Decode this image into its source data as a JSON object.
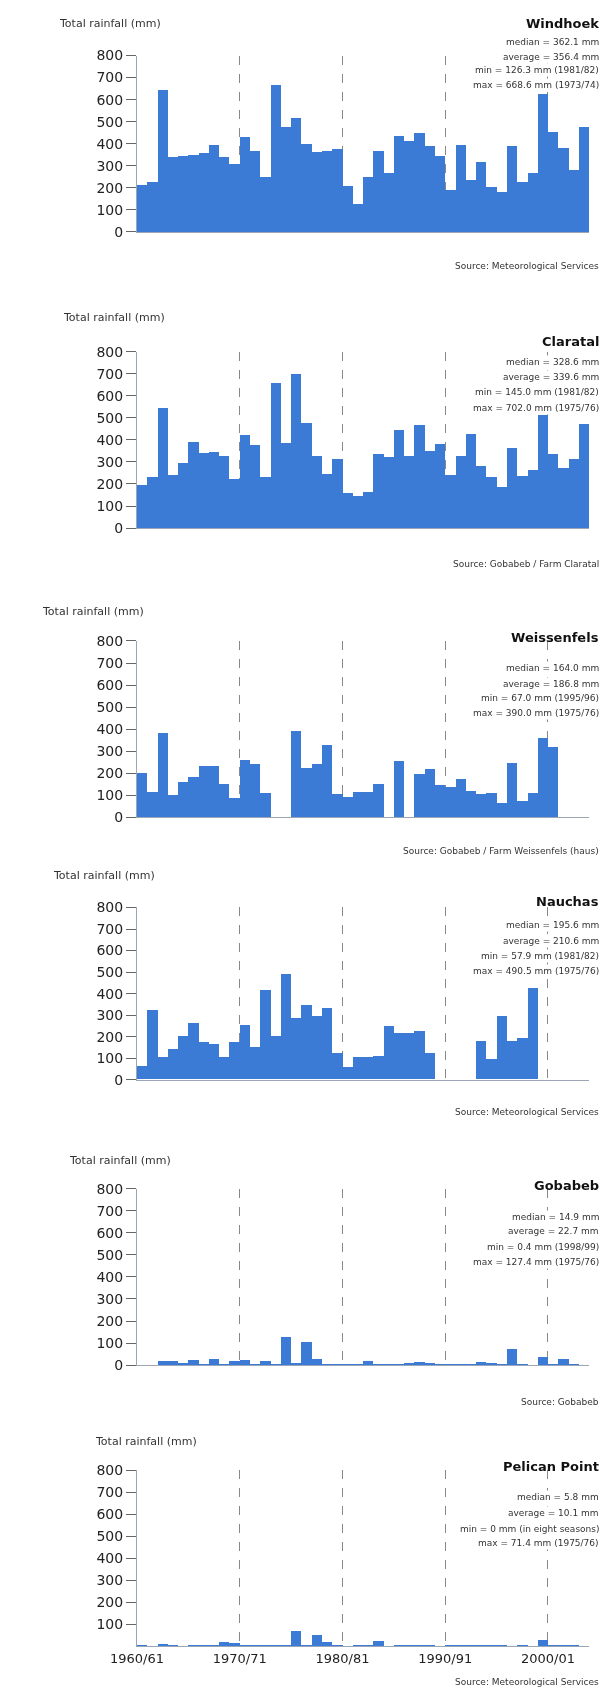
{
  "chart_data": [
    {
      "type": "bar",
      "title": "Windhoek",
      "ylabel": "Total rainfall (mm)",
      "categories": [
        "1960/61",
        null,
        null,
        null,
        null,
        null,
        null,
        null,
        null,
        null,
        "1970/71",
        null,
        null,
        null,
        null,
        null,
        null,
        null,
        null,
        null,
        "1980/81",
        null,
        null,
        null,
        null,
        null,
        null,
        null,
        null,
        null,
        "1990/91",
        null,
        null,
        null,
        null,
        null,
        null,
        null,
        null,
        null,
        "2000/01",
        null,
        null,
        null
      ],
      "values": [
        215,
        229,
        645,
        341,
        345,
        350,
        358,
        398,
        341,
        310,
        433,
        369,
        249,
        668.6,
        480,
        518,
        402,
        365,
        367,
        379,
        210,
        126.3,
        253,
        371,
        267,
        438,
        416,
        450,
        390,
        346,
        194,
        397,
        239,
        319,
        206,
        185,
        390,
        229,
        268,
        627,
        454,
        381,
        282,
        476
      ],
      "color": "#3b7bd6",
      "ylim": [
        0,
        800
      ],
      "yticks": [
        0,
        100,
        200,
        300,
        400,
        500,
        600,
        700,
        800
      ],
      "grid": "x",
      "tick_labels": "y",
      "annotations": [
        "median = 362.1 mm",
        "average = 356.4 mm",
        "min = 126.3 mm (1981/82)",
        "max = 668.6 mm (1973/74)",
        "Source: Meteorological Services"
      ]
    },
    {
      "type": "bar",
      "title": "Claratal",
      "ylabel": "Total rainfall (mm)",
      "categories": [
        "1960/61",
        null,
        null,
        null,
        null,
        null,
        null,
        null,
        null,
        null,
        "1970/71",
        null,
        null,
        null,
        null,
        null,
        null,
        null,
        null,
        null,
        "1980/81",
        null,
        null,
        null,
        null,
        null,
        null,
        null,
        null,
        null,
        "1990/91",
        null,
        null,
        null,
        null,
        null,
        null,
        null,
        null,
        null,
        "2000/01",
        null,
        null,
        null
      ],
      "values": [
        195,
        235,
        546,
        240,
        295,
        390,
        342,
        345,
        330,
        225,
        423,
        380,
        235,
        658,
        389,
        702.0,
        477,
        326,
        245,
        316,
        161,
        145.0,
        166,
        335,
        323,
        447,
        326,
        468,
        349,
        382,
        242,
        326,
        428,
        283,
        231,
        188,
        364,
        237,
        264,
        515,
        337,
        275,
        314,
        472
      ],
      "color": "#3b7bd6",
      "ylim": [
        0,
        800
      ],
      "yticks": [
        0,
        100,
        200,
        300,
        400,
        500,
        600,
        700,
        800
      ],
      "grid": "x",
      "tick_labels": "y",
      "annotations": [
        "median = 328.6 mm",
        "average = 339.6 mm",
        "min = 145.0 mm (1981/82)",
        "max = 702.0 mm (1975/76)",
        "Source: Gobabeb / Farm Claratal"
      ]
    },
    {
      "type": "bar",
      "title": "Weissenfels",
      "ylabel": "Total rainfall (mm)",
      "categories": [
        "1960/61",
        null,
        null,
        null,
        null,
        null,
        null,
        null,
        null,
        null,
        "1970/71",
        null,
        null,
        null,
        null,
        null,
        null,
        null,
        null,
        null,
        "1980/81",
        null,
        null,
        null,
        null,
        null,
        null,
        null,
        null,
        null,
        "1990/91",
        null,
        null,
        null,
        null,
        null,
        null,
        null,
        null,
        null,
        "2000/01",
        null,
        null,
        null
      ],
      "values": [
        200,
        117,
        382,
        102,
        162,
        183,
        233,
        233,
        149,
        88,
        259,
        240,
        111,
        null,
        null,
        390.0,
        225,
        244,
        328,
        107,
        90,
        114,
        114,
        150,
        null,
        254,
        null,
        195,
        221,
        147,
        138,
        176,
        121,
        104,
        111,
        67.0,
        247,
        76,
        109,
        361,
        321,
        null,
        null,
        null
      ],
      "color": "#3b7bd6",
      "ylim": [
        0,
        800
      ],
      "yticks": [
        0,
        100,
        200,
        300,
        400,
        500,
        600,
        700,
        800
      ],
      "grid": "x",
      "tick_labels": "y",
      "annotations": [
        "median = 164.0 mm",
        "average = 186.8 mm",
        "min = 67.0 mm (1995/96)",
        "max = 390.0 mm (1975/76)",
        "Source: Gobabeb / Farm Weissenfels (haus)"
      ]
    },
    {
      "type": "bar",
      "title": "Nauchas",
      "ylabel": "Total rainfall (mm)",
      "categories": [
        "1960/61",
        null,
        null,
        null,
        null,
        null,
        null,
        null,
        null,
        null,
        "1970/71",
        null,
        null,
        null,
        null,
        null,
        null,
        null,
        null,
        null,
        "1980/81",
        null,
        null,
        null,
        null,
        null,
        null,
        null,
        null,
        null,
        "1990/91",
        null,
        null,
        null,
        null,
        null,
        null,
        null,
        null,
        null,
        "2000/01",
        null,
        null,
        null
      ],
      "values": [
        64,
        320,
        106,
        140,
        201,
        260,
        173,
        164,
        104,
        173,
        254,
        148,
        415,
        203,
        490.5,
        286,
        343,
        292,
        330,
        124,
        57.9,
        102,
        106,
        108,
        246,
        217,
        216,
        226,
        122,
        null,
        null,
        null,
        null,
        180,
        95,
        292,
        180,
        194,
        424,
        null,
        null,
        null,
        null,
        null
      ],
      "color": "#3b7bd6",
      "ylim": [
        0,
        800
      ],
      "yticks": [
        0,
        100,
        200,
        300,
        400,
        500,
        600,
        700,
        800
      ],
      "grid": "x",
      "tick_labels": "y",
      "annotations": [
        "median = 195.6 mm",
        "average = 210.6 mm",
        "min = 57.9 mm (1981/82)",
        "max = 490.5 mm (1975/76)",
        "Source: Meteorological Services"
      ]
    },
    {
      "type": "bar",
      "title": "Gobabeb",
      "ylabel": "Total rainfall (mm)",
      "categories": [
        "1960/61",
        null,
        null,
        null,
        null,
        null,
        null,
        null,
        null,
        null,
        "1970/71",
        null,
        null,
        null,
        null,
        null,
        null,
        null,
        null,
        null,
        "1980/81",
        null,
        null,
        null,
        null,
        null,
        null,
        null,
        null,
        null,
        "1990/91",
        null,
        null,
        null,
        null,
        null,
        null,
        null,
        null,
        null,
        "2000/01",
        null,
        null,
        null
      ],
      "values": [
        null,
        null,
        19,
        20,
        10,
        24,
        3,
        28,
        3,
        19,
        22,
        3,
        19,
        3,
        127.4,
        12,
        105,
        28,
        3,
        5,
        3,
        3,
        19,
        8,
        3,
        3,
        10,
        14,
        12,
        8,
        8,
        5,
        3,
        17,
        12,
        8,
        74,
        3,
        0.4,
        38,
        8,
        28,
        3,
        null
      ],
      "color": "#3b7bd6",
      "ylim": [
        0,
        800
      ],
      "yticks": [
        0,
        100,
        200,
        300,
        400,
        500,
        600,
        700,
        800
      ],
      "grid": "x",
      "tick_labels": "y",
      "annotations": [
        "median = 14.9 mm",
        "average = 22.7 mm",
        "min = 0.4 mm (1998/99)",
        "max = 127.4 mm (1975/76)",
        "Source: Gobabeb"
      ]
    },
    {
      "type": "bar",
      "title": "Pelican Point",
      "ylabel": "Total rainfall (mm)",
      "categories": [
        "1960/61",
        null,
        null,
        null,
        null,
        null,
        null,
        null,
        null,
        null,
        "1970/71",
        null,
        null,
        null,
        null,
        null,
        null,
        null,
        null,
        null,
        "1980/81",
        null,
        null,
        null,
        null,
        null,
        null,
        null,
        null,
        null,
        "1990/91",
        null,
        null,
        null,
        null,
        null,
        null,
        null,
        null,
        null,
        "2000/01",
        null,
        null,
        null
      ],
      "values": [
        2,
        0,
        12,
        3,
        0,
        2,
        5,
        8,
        20,
        15,
        3,
        2,
        2,
        5,
        3,
        71.4,
        3,
        50,
        20,
        3,
        0,
        3,
        8,
        25,
        0,
        2,
        2,
        5,
        3,
        0,
        2,
        2,
        2,
        2,
        2,
        2,
        0,
        2,
        0,
        28,
        2,
        2,
        2,
        0
      ],
      "color": "#3b7bd6",
      "ylim": [
        0,
        800
      ],
      "yticks": [
        100,
        200,
        300,
        400,
        500,
        600,
        700,
        800
      ],
      "grid": "x",
      "annotations": [
        "median = 5.8 mm",
        "average = 10.1 mm",
        "min = 0 mm (in eight seasons)",
        "max = 71.4 mm (1975/76)",
        "Source: Meteorological Services"
      ]
    }
  ]
}
